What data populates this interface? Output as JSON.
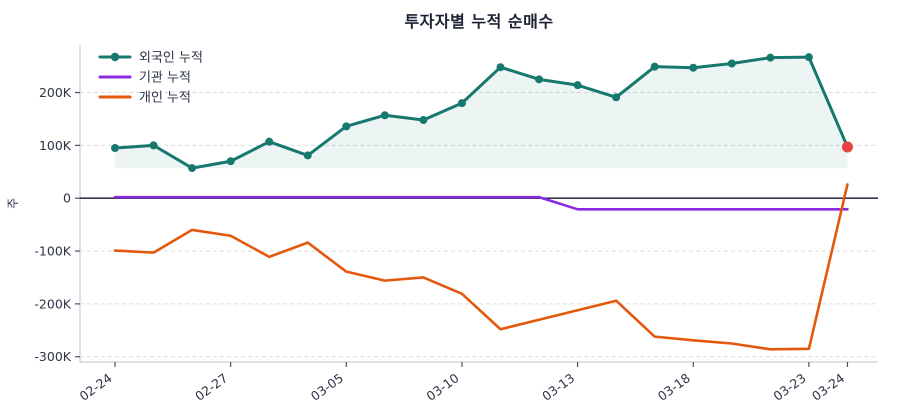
{
  "title": "투자자별 누적 순매수",
  "chart_data": {
    "type": "line",
    "title": "투자자별 누적 순매수",
    "ylabel": "주",
    "xlabel": "",
    "unit": "thousands of shares (K)",
    "n_points": 20,
    "x_tick_labels": [
      {
        "index": 0,
        "label": "02-24"
      },
      {
        "index": 3,
        "label": "02-27"
      },
      {
        "index": 6,
        "label": "03-05"
      },
      {
        "index": 9,
        "label": "03-10"
      },
      {
        "index": 12,
        "label": "03-13"
      },
      {
        "index": 15,
        "label": "03-18"
      },
      {
        "index": 18,
        "label": "03-23"
      },
      {
        "index": 19,
        "label": "03-24"
      }
    ],
    "y_ticks": [
      {
        "value_k": 200,
        "label": "200K"
      },
      {
        "value_k": 100,
        "label": "100K"
      },
      {
        "value_k": 0,
        "label": "0"
      },
      {
        "value_k": -100,
        "label": "-100K"
      },
      {
        "value_k": -200,
        "label": "-200K"
      },
      {
        "value_k": -300,
        "label": "-300K"
      }
    ],
    "ylim_k": [
      -310,
      290
    ],
    "grid": true,
    "zero_line": true,
    "legend_position": "top-left-inside",
    "series": [
      {
        "name": "외국인 누적",
        "color": "#17796e",
        "line_width": 3,
        "markers": true,
        "area_fill": true,
        "area_fill_color": "#17796e",
        "area_fill_opacity": 0.08,
        "values_k": [
          95,
          100,
          57,
          70,
          107,
          81,
          136,
          157,
          148,
          180,
          248,
          225,
          214,
          191,
          249,
          247,
          255,
          266,
          267,
          97
        ]
      },
      {
        "name": "기관 누적",
        "color": "#8a2be2",
        "line_width": 2.6,
        "markers": false,
        "area_fill": false,
        "values_k": [
          2,
          2,
          2,
          2,
          2,
          2,
          2,
          2,
          2,
          2,
          2,
          2,
          -21,
          -21,
          -21,
          -21,
          -21,
          -21,
          -21,
          -21
        ]
      },
      {
        "name": "개인 누적",
        "color": "#e4580d",
        "line_width": 2.6,
        "markers": false,
        "area_fill": false,
        "values_k": [
          -99,
          -103,
          -60,
          -71,
          -111,
          -84,
          -139,
          -156,
          -150,
          -181,
          -248,
          -230,
          -212,
          -194,
          -262,
          -269,
          -275,
          -286,
          -285,
          26
        ]
      }
    ],
    "last_point_highlight": {
      "series": "외국인 누적",
      "point_index": 19,
      "color": "#e84343"
    },
    "colors": {
      "grid_line": "#dcdcdf",
      "zero_line": "#30384a",
      "spine": "#c9ccd4",
      "tick_mark": "#4a5163",
      "tick_label": "#2d3445",
      "title": "#1b2133"
    }
  }
}
